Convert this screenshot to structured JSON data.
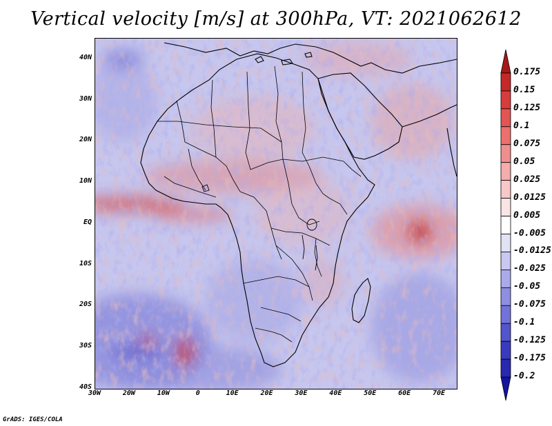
{
  "title": "Vertical velocity [m/s] at 300hPa, VT: 2021062612",
  "footer": "GrADS: IGES/COLA",
  "map": {
    "lon_range": [
      -30,
      75
    ],
    "lat_range": [
      -40,
      45
    ],
    "lat_labels": [
      "40N",
      "30N",
      "20N",
      "10N",
      "EQ",
      "10S",
      "20S",
      "30S",
      "40S"
    ],
    "lat_values": [
      40,
      30,
      20,
      10,
      0,
      -10,
      -20,
      -30,
      -40
    ],
    "lon_labels": [
      "30W",
      "20W",
      "10W",
      "0",
      "10E",
      "20E",
      "30E",
      "40E",
      "50E",
      "60E",
      "70E"
    ],
    "lon_values": [
      -30,
      -20,
      -10,
      0,
      10,
      20,
      30,
      40,
      50,
      60,
      70
    ]
  },
  "colorbar": {
    "labels": [
      "0.175",
      "0.15",
      "0.125",
      "0.1",
      "0.075",
      "0.05",
      "0.025",
      "0.0125",
      "0.005",
      "-0.005",
      "-0.0125",
      "-0.025",
      "-0.05",
      "-0.075",
      "-0.1",
      "-0.125",
      "-0.175",
      "-0.2"
    ],
    "colors": [
      "#a81818",
      "#c42828",
      "#d83c3c",
      "#e45454",
      "#ec7070",
      "#f08e8e",
      "#f4acac",
      "#f8c8c8",
      "#fce4e4",
      "#ffffff",
      "#e2e2f6",
      "#c8c8f0",
      "#aaaaea",
      "#8e8ee2",
      "#7272da",
      "#5454cc",
      "#3a3abe",
      "#2828b0",
      "#1414a0"
    ]
  }
}
